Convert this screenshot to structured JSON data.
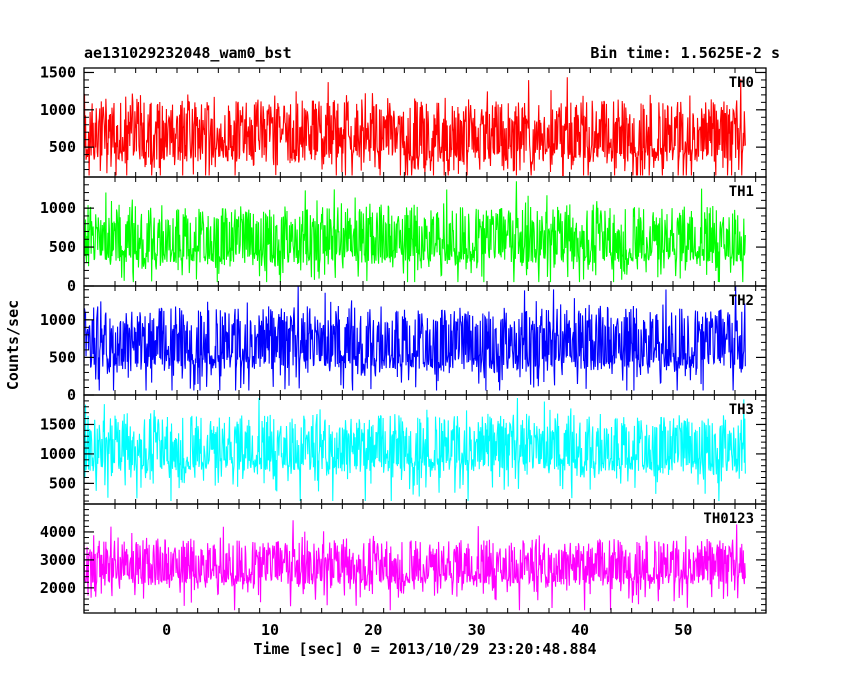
{
  "chart_data": {
    "type": "line",
    "title_left": "ae131029232048_wam0_bst",
    "title_right": "Bin time: 1.5625E-2 s",
    "xlabel": "Time [sec] 0 = 2013/10/29 23:20:48.884",
    "ylabel": "Counts/sec",
    "xlim": [
      -8,
      58
    ],
    "x_range_data": [
      -8,
      56
    ],
    "xticks": [
      0,
      10,
      20,
      30,
      40,
      50
    ],
    "xtick_labels": [
      "0",
      "10",
      "20",
      "30",
      "40",
      "50"
    ],
    "grid": false,
    "series": [
      {
        "name": "TH0",
        "color": "#ff0000",
        "ylim": [
          100,
          1560
        ],
        "yticks": [
          500,
          1000,
          1500
        ],
        "ytick_labels": [
          "500",
          "1000",
          "1500"
        ],
        "baseline": 600,
        "spread": 360,
        "floor": 120,
        "ceil": 1560
      },
      {
        "name": "TH1",
        "color": "#00ff00",
        "ylim": [
          0,
          1400
        ],
        "yticks": [
          0,
          500,
          1000
        ],
        "ytick_labels": [
          "0",
          "500",
          "1000"
        ],
        "baseline": 560,
        "spread": 320,
        "floor": 50,
        "ceil": 1400
      },
      {
        "name": "TH2",
        "color": "#0000ff",
        "ylim": [
          0,
          1450
        ],
        "yticks": [
          0,
          500,
          1000
        ],
        "ytick_labels": [
          "0",
          "500",
          "1000"
        ],
        "baseline": 640,
        "spread": 360,
        "floor": 60,
        "ceil": 1450
      },
      {
        "name": "TH3",
        "color": "#00ffff",
        "ylim": [
          150,
          2000
        ],
        "yticks": [
          500,
          1000,
          1500
        ],
        "ytick_labels": [
          "500",
          "1000",
          "1500"
        ],
        "baseline": 1050,
        "spread": 420,
        "floor": 200,
        "ceil": 1950
      },
      {
        "name": "TH0123",
        "color": "#ff00ff",
        "ylim": [
          1100,
          5000
        ],
        "yticks": [
          2000,
          3000,
          4000
        ],
        "ytick_labels": [
          "2000",
          "3000",
          "4000"
        ],
        "baseline": 2700,
        "spread": 700,
        "floor": 1200,
        "ceil": 4950
      }
    ]
  }
}
